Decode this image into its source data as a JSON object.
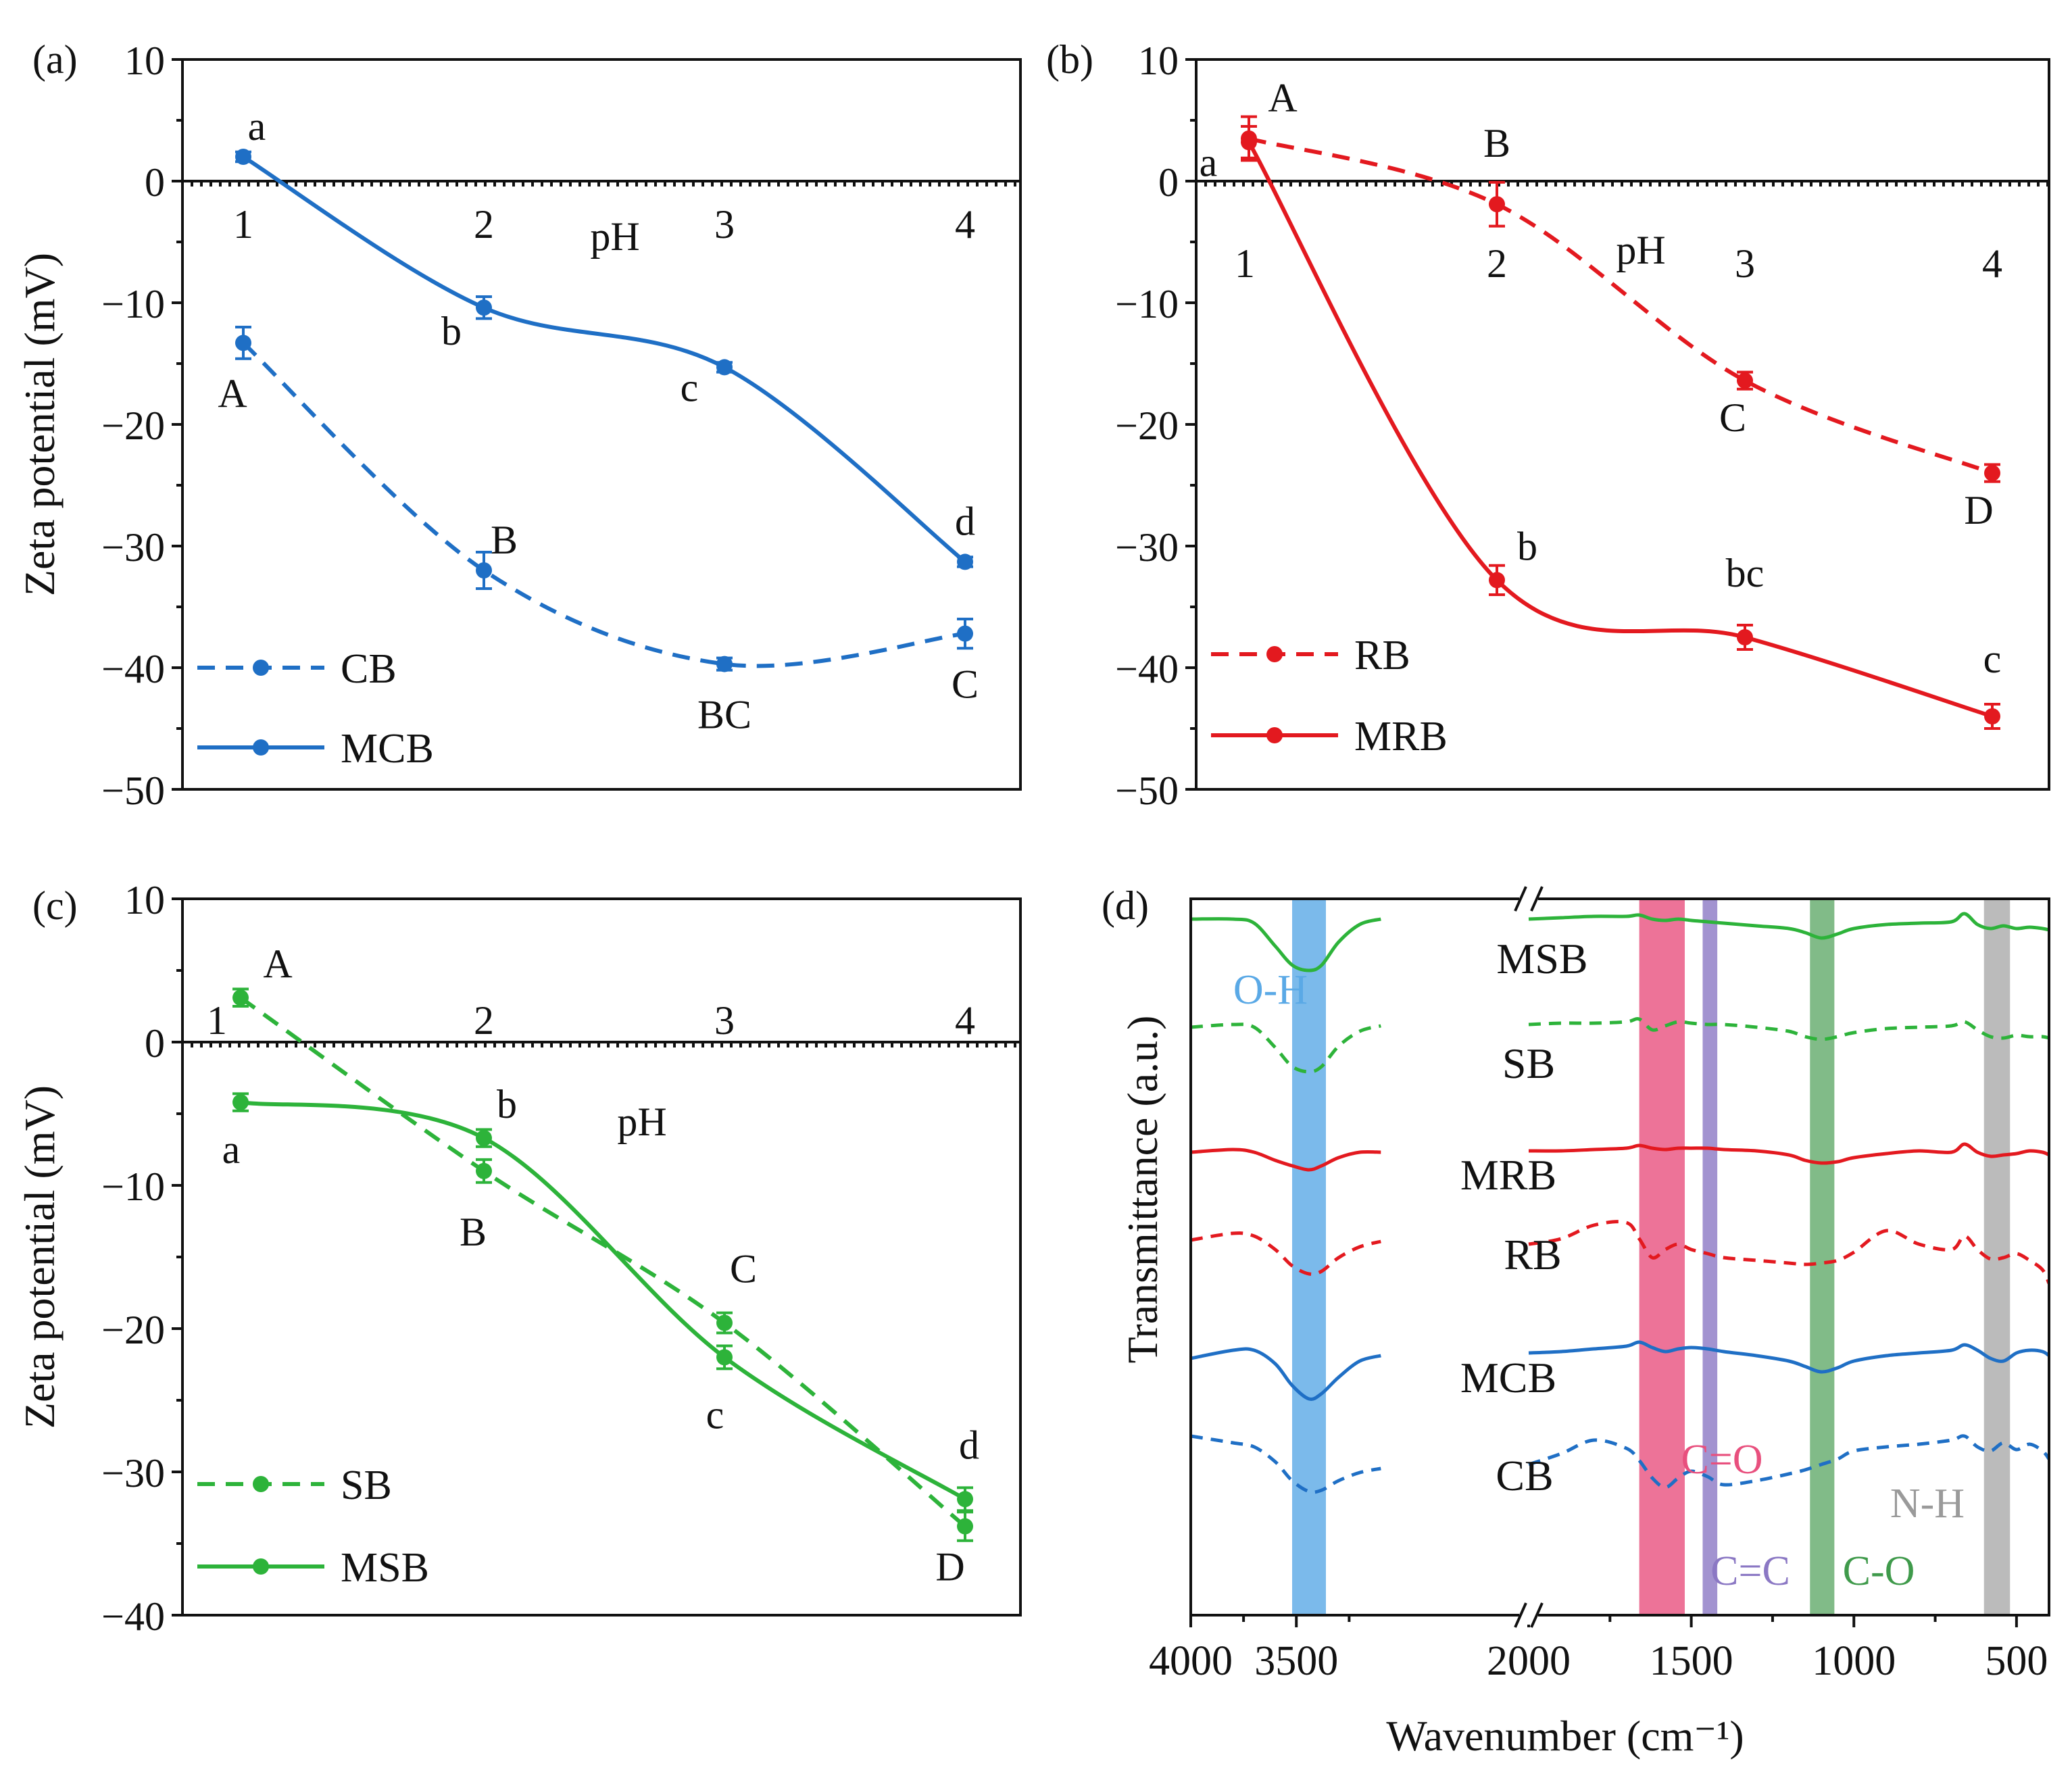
{
  "chart_data": [
    {
      "panel_label": "(a)",
      "type": "line",
      "xlabel": "pH",
      "ylabel": "Zeta potential (mV)",
      "ylim": [
        -50,
        10
      ],
      "yticks": [
        10,
        0,
        -10,
        -20,
        -30,
        -40,
        -50
      ],
      "ytick_labels": [
        "10",
        "0",
        "−10",
        "−20",
        "−30",
        "−40",
        "−50"
      ],
      "categories": [
        "1",
        "2",
        "3",
        "4"
      ],
      "legend_position": "bottom-left",
      "series": [
        {
          "name": "CB",
          "style": "dashed",
          "color": "#1f6fc5",
          "values": [
            -13.3,
            -32.0,
            -39.7,
            -37.2
          ],
          "errors": [
            1.3,
            1.5,
            0.5,
            1.2
          ],
          "letters": [
            "A",
            "B",
            "BC",
            "C"
          ]
        },
        {
          "name": "MCB",
          "style": "solid",
          "color": "#1f6fc5",
          "values": [
            2.0,
            -10.4,
            -15.3,
            -31.3
          ],
          "errors": [
            0.4,
            0.9,
            0.4,
            0.4
          ],
          "letters": [
            "a",
            "b",
            "c",
            "d"
          ]
        }
      ]
    },
    {
      "panel_label": "(b)",
      "type": "line",
      "xlabel": "pH",
      "ylabel": "",
      "ylim": [
        -50,
        10
      ],
      "yticks": [
        10,
        0,
        -10,
        -20,
        -30,
        -40,
        -50
      ],
      "ytick_labels": [
        "10",
        "0",
        "−10",
        "−20",
        "−30",
        "−40",
        "−50"
      ],
      "categories": [
        "1",
        "2",
        "3",
        "4"
      ],
      "legend_position": "bottom-left",
      "series": [
        {
          "name": "RB",
          "style": "dashed",
          "color": "#e3191f",
          "values": [
            3.5,
            -1.9,
            -16.4,
            -24.0
          ],
          "errors": [
            1.8,
            1.8,
            0.7,
            0.7
          ],
          "letters": [
            "A",
            "B",
            "C",
            "D"
          ]
        },
        {
          "name": "MRB",
          "style": "solid",
          "color": "#e3191f",
          "values": [
            3.2,
            -32.8,
            -37.5,
            -44.0
          ],
          "errors": [
            1.3,
            1.2,
            1.0,
            1.0
          ],
          "letters": [
            "a",
            "b",
            "bc",
            "c"
          ]
        }
      ]
    },
    {
      "panel_label": "(c)",
      "type": "line",
      "xlabel": "pH",
      "ylabel": "Zeta potential (mV)",
      "ylim": [
        -40,
        10
      ],
      "yticks": [
        10,
        0,
        -10,
        -20,
        -30,
        -40
      ],
      "ytick_labels": [
        "10",
        "0",
        "−10",
        "−20",
        "−30",
        "−40"
      ],
      "categories": [
        "1",
        "2",
        "3",
        "4"
      ],
      "legend_position": "bottom-left",
      "series": [
        {
          "name": "SB",
          "style": "dashed",
          "color": "#2db33a",
          "values": [
            3.1,
            -9.0,
            -19.6,
            -33.8
          ],
          "errors": [
            0.6,
            0.8,
            0.7,
            1.0
          ],
          "letters": [
            "A",
            "B",
            "C",
            "D"
          ]
        },
        {
          "name": "MSB",
          "style": "solid",
          "color": "#2db33a",
          "values": [
            -4.2,
            -6.7,
            -22.0,
            -31.9
          ],
          "errors": [
            0.6,
            0.6,
            0.8,
            0.8
          ],
          "letters": [
            "a",
            "b",
            "c",
            "d"
          ]
        }
      ]
    },
    {
      "panel_label": "(d)",
      "type": "line",
      "xlabel": "Wavenumber (cm⁻¹)",
      "ylabel": "Transmittance (a.u.)",
      "xlim": [
        4000,
        400
      ],
      "xaxis_break": [
        2000,
        2400
      ],
      "xticks": [
        4000,
        3500,
        2000,
        1500,
        1000,
        500
      ],
      "xtick_labels": [
        "4000",
        "3500",
        "2000",
        "1500",
        "1000",
        "500"
      ],
      "bands": [
        {
          "label": "O-H",
          "from": 3520,
          "to": 3360,
          "color": "#5aa9e6"
        },
        {
          "label": "C=O",
          "from": 1660,
          "to": 1520,
          "color": "#e8507e"
        },
        {
          "label": "C=C",
          "from": 1465,
          "to": 1420,
          "color": "#8b78c4"
        },
        {
          "label": "C-O",
          "from": 1135,
          "to": 1060,
          "color": "#62aa6a"
        },
        {
          "label": "N-H",
          "from": 600,
          "to": 520,
          "color": "#aaaaaa"
        }
      ],
      "x": [
        4000,
        3800,
        3700,
        3600,
        3520,
        3440,
        3380,
        3300,
        3200,
        3100,
        2000,
        1900,
        1800,
        1700,
        1660,
        1620,
        1580,
        1540,
        1500,
        1450,
        1400,
        1300,
        1200,
        1150,
        1100,
        1050,
        1000,
        900,
        800,
        700,
        660,
        620,
        580,
        540,
        500,
        460,
        420,
        400
      ],
      "series": [
        {
          "name": "MSB",
          "style": "solid",
          "color": "#2db33a",
          "offset": 0.0,
          "values": [
            1.0,
            1.0,
            0.97,
            0.8,
            0.66,
            0.62,
            0.66,
            0.83,
            0.96,
            1.0,
            1.0,
            1.01,
            1.02,
            1.02,
            1.03,
            1.0,
            0.99,
            1.0,
            0.99,
            0.98,
            0.97,
            0.95,
            0.93,
            0.9,
            0.86,
            0.89,
            0.93,
            0.96,
            0.97,
            0.98,
            1.04,
            0.96,
            0.93,
            0.95,
            0.93,
            0.94,
            0.93,
            0.92
          ]
        },
        {
          "name": "SB",
          "style": "dashed",
          "color": "#2db33a",
          "offset": 0.0,
          "values": [
            0.0,
            0.02,
            0.0,
            -0.15,
            -0.29,
            -0.33,
            -0.29,
            -0.14,
            -0.03,
            0.01,
            0.02,
            0.03,
            0.03,
            0.04,
            0.06,
            -0.02,
            0.01,
            0.04,
            0.03,
            0.02,
            0.02,
            0.0,
            -0.03,
            -0.07,
            -0.09,
            -0.07,
            -0.04,
            -0.01,
            0.0,
            0.01,
            0.04,
            -0.02,
            -0.07,
            -0.08,
            -0.06,
            -0.07,
            -0.07,
            -0.08
          ]
        },
        {
          "name": "MRB",
          "style": "solid",
          "color": "#e3191f",
          "offset": 0.0,
          "values": [
            -0.9,
            -0.88,
            -0.9,
            -0.96,
            -1.0,
            -1.03,
            -1.0,
            -0.94,
            -0.9,
            -0.9,
            -0.89,
            -0.89,
            -0.88,
            -0.87,
            -0.85,
            -0.87,
            -0.88,
            -0.87,
            -0.87,
            -0.87,
            -0.88,
            -0.89,
            -0.92,
            -0.96,
            -0.98,
            -0.97,
            -0.94,
            -0.91,
            -0.89,
            -0.9,
            -0.84,
            -0.9,
            -0.93,
            -0.92,
            -0.91,
            -0.89,
            -0.9,
            -0.92
          ]
        },
        {
          "name": "RB",
          "style": "dashed",
          "color": "#e3191f",
          "offset": 0.0,
          "values": [
            -1.23,
            -1.18,
            -1.2,
            -1.3,
            -1.42,
            -1.48,
            -1.46,
            -1.36,
            -1.28,
            -1.24,
            -1.26,
            -1.22,
            -1.12,
            -1.1,
            -1.22,
            -1.36,
            -1.3,
            -1.26,
            -1.3,
            -1.33,
            -1.36,
            -1.38,
            -1.4,
            -1.41,
            -1.4,
            -1.38,
            -1.32,
            -1.16,
            -1.26,
            -1.3,
            -1.2,
            -1.3,
            -1.37,
            -1.36,
            -1.33,
            -1.38,
            -1.45,
            -1.55
          ]
        },
        {
          "name": "MCB",
          "style": "solid",
          "color": "#1f6fc5",
          "offset": 0.0,
          "values": [
            -1.68,
            -1.62,
            -1.62,
            -1.72,
            -1.88,
            -1.98,
            -1.94,
            -1.82,
            -1.7,
            -1.66,
            -1.64,
            -1.63,
            -1.61,
            -1.59,
            -1.56,
            -1.6,
            -1.63,
            -1.61,
            -1.6,
            -1.61,
            -1.63,
            -1.66,
            -1.7,
            -1.74,
            -1.78,
            -1.75,
            -1.7,
            -1.66,
            -1.64,
            -1.62,
            -1.58,
            -1.62,
            -1.68,
            -1.7,
            -1.64,
            -1.62,
            -1.63,
            -1.66
          ]
        },
        {
          "name": "CB",
          "style": "dashed",
          "color": "#1f6fc5",
          "offset": 0.0,
          "values": [
            -1.97,
            -2.02,
            -2.05,
            -2.16,
            -2.3,
            -2.38,
            -2.37,
            -2.3,
            -2.24,
            -2.21,
            -2.18,
            -2.1,
            -2.0,
            -2.06,
            -2.15,
            -2.28,
            -2.35,
            -2.28,
            -2.23,
            -2.27,
            -2.33,
            -2.3,
            -2.25,
            -2.22,
            -2.18,
            -2.14,
            -2.08,
            -2.05,
            -2.03,
            -2.0,
            -1.97,
            -2.05,
            -2.08,
            -2.02,
            -2.07,
            -2.03,
            -2.08,
            -2.14
          ]
        }
      ]
    }
  ]
}
